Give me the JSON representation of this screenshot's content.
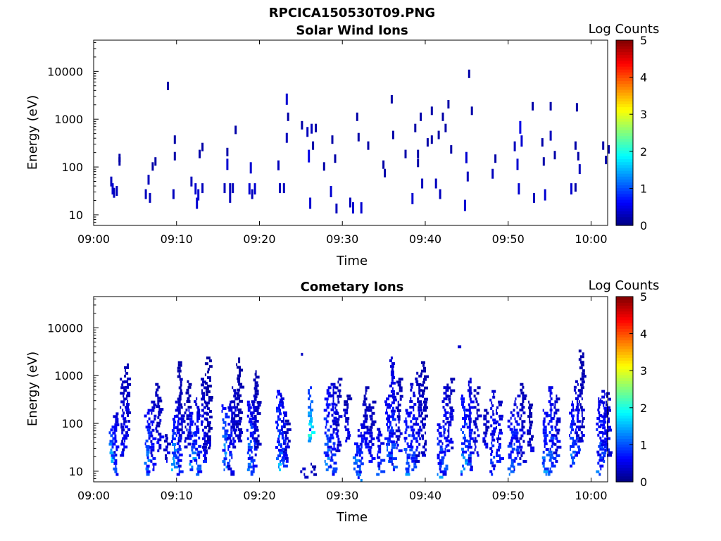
{
  "figure_title": "RPCICA150530T09.PNG",
  "colorbar": {
    "label": "Log Counts",
    "ticks": [
      "0",
      "1",
      "2",
      "3",
      "4",
      "5"
    ],
    "range": [
      0,
      5
    ],
    "colormap": "jet"
  },
  "chart_data": [
    {
      "type": "heatmap",
      "title": "Solar Wind Ions",
      "xlabel": "Time",
      "ylabel": "Energy (eV)",
      "x_ticks": [
        "09:00",
        "09:10",
        "09:20",
        "09:30",
        "09:40",
        "09:50",
        "10:00"
      ],
      "y_ticks": [
        "10",
        "100",
        "1000",
        "10000"
      ],
      "y_scale": "log",
      "xlim": [
        "09:00",
        "10:02"
      ],
      "ylim": [
        6,
        45000
      ],
      "points": [
        [
          "09:02:00",
          55,
          0.3
        ],
        [
          "09:02:10",
          40,
          0.4
        ],
        [
          "09:02:20",
          32,
          0.3
        ],
        [
          "09:02:40",
          35,
          0.3
        ],
        [
          "09:03:00",
          165,
          0.2
        ],
        [
          "09:03:00",
          140,
          0.2
        ],
        [
          "09:06:10",
          30,
          0.3
        ],
        [
          "09:06:30",
          60,
          0.3
        ],
        [
          "09:06:40",
          25,
          0.3
        ],
        [
          "09:07:00",
          110,
          0.2
        ],
        [
          "09:07:20",
          140,
          0.2
        ],
        [
          "09:08:50",
          5300,
          0.2
        ],
        [
          "09:09:30",
          30,
          0.3
        ],
        [
          "09:09:40",
          400,
          0.2
        ],
        [
          "09:09:40",
          180,
          0.2
        ],
        [
          "09:11:40",
          55,
          0.3
        ],
        [
          "09:12:10",
          40,
          0.4
        ],
        [
          "09:12:20",
          20,
          0.4
        ],
        [
          "09:12:30",
          30,
          0.4
        ],
        [
          "09:12:40",
          200,
          0.2
        ],
        [
          "09:13:00",
          280,
          0.2
        ],
        [
          "09:13:00",
          40,
          0.3
        ],
        [
          "09:15:40",
          40,
          0.3
        ],
        [
          "09:16:00",
          130,
          0.4
        ],
        [
          "09:16:00",
          220,
          0.2
        ],
        [
          "09:16:20",
          40,
          0.3
        ],
        [
          "09:16:20",
          25,
          0.3
        ],
        [
          "09:16:40",
          40,
          0.3
        ],
        [
          "09:17:00",
          640,
          0.2
        ],
        [
          "09:18:40",
          40,
          0.4
        ],
        [
          "09:18:50",
          110,
          0.4
        ],
        [
          "09:19:00",
          30,
          0.3
        ],
        [
          "09:19:20",
          40,
          0.4
        ],
        [
          "09:22:10",
          120,
          0.3
        ],
        [
          "09:22:20",
          40,
          0.3
        ],
        [
          "09:22:50",
          40,
          0.3
        ],
        [
          "09:23:10",
          3000,
          0.4
        ],
        [
          "09:23:10",
          450,
          0.3
        ],
        [
          "09:23:20",
          1200,
          0.2
        ],
        [
          "09:25:00",
          800,
          0.2
        ],
        [
          "09:25:40",
          600,
          0.3
        ],
        [
          "09:25:50",
          200,
          0.5
        ],
        [
          "09:26:00",
          20,
          0.4
        ],
        [
          "09:26:10",
          700,
          0.3
        ],
        [
          "09:26:20",
          300,
          0.2
        ],
        [
          "09:26:40",
          700,
          0.2
        ],
        [
          "09:27:40",
          110,
          0.2
        ],
        [
          "09:28:30",
          35,
          0.4
        ],
        [
          "09:28:40",
          400,
          0.2
        ],
        [
          "09:29:00",
          160,
          0.2
        ],
        [
          "09:29:10",
          15,
          0.3
        ],
        [
          "09:30:50",
          20,
          0.3
        ],
        [
          "09:31:10",
          16,
          0.4
        ],
        [
          "09:31:40",
          1200,
          0.2
        ],
        [
          "09:31:50",
          450,
          0.2
        ],
        [
          "09:32:10",
          16,
          0.4
        ],
        [
          "09:33:00",
          300,
          0.2
        ],
        [
          "09:34:50",
          120,
          0.2
        ],
        [
          "09:35:00",
          80,
          0.2
        ],
        [
          "09:35:50",
          2800,
          0.2
        ],
        [
          "09:36:00",
          500,
          0.2
        ],
        [
          "09:37:30",
          200,
          0.2
        ],
        [
          "09:38:20",
          25,
          0.4
        ],
        [
          "09:38:40",
          700,
          0.2
        ],
        [
          "09:39:00",
          200,
          0.2
        ],
        [
          "09:39:00",
          130,
          0.2
        ],
        [
          "09:39:20",
          1200,
          0.2
        ],
        [
          "09:39:30",
          50,
          0.3
        ],
        [
          "09:40:10",
          350,
          0.2
        ],
        [
          "09:40:40",
          1600,
          0.2
        ],
        [
          "09:40:40",
          400,
          0.2
        ],
        [
          "09:41:10",
          50,
          0.3
        ],
        [
          "09:41:30",
          500,
          0.2
        ],
        [
          "09:41:40",
          30,
          0.3
        ],
        [
          "09:42:00",
          1200,
          0.2
        ],
        [
          "09:42:20",
          700,
          0.2
        ],
        [
          "09:42:40",
          2200,
          0.2
        ],
        [
          "09:43:00",
          250,
          0.2
        ],
        [
          "09:44:40",
          18,
          0.4
        ],
        [
          "09:44:50",
          180,
          0.4
        ],
        [
          "09:45:00",
          70,
          0.3
        ],
        [
          "09:45:10",
          9500,
          0.2
        ],
        [
          "09:45:30",
          1600,
          0.2
        ],
        [
          "09:48:00",
          80,
          0.3
        ],
        [
          "09:48:20",
          160,
          0.2
        ],
        [
          "09:50:40",
          300,
          0.3
        ],
        [
          "09:51:00",
          130,
          0.4
        ],
        [
          "09:51:10",
          40,
          0.4
        ],
        [
          "09:51:20",
          800,
          0.5
        ],
        [
          "09:51:30",
          400,
          0.4
        ],
        [
          "09:52:50",
          2000,
          0.2
        ],
        [
          "09:53:00",
          25,
          0.3
        ],
        [
          "09:54:00",
          350,
          0.2
        ],
        [
          "09:54:10",
          140,
          0.2
        ],
        [
          "09:54:20",
          30,
          0.4
        ],
        [
          "09:55:00",
          2000,
          0.2
        ],
        [
          "09:55:00",
          500,
          0.3
        ],
        [
          "09:55:30",
          190,
          0.2
        ],
        [
          "09:57:30",
          40,
          0.4
        ],
        [
          "09:58:00",
          40,
          0.2
        ],
        [
          "09:58:00",
          300,
          0.2
        ],
        [
          "09:58:10",
          1900,
          0.2
        ],
        [
          "09:58:20",
          180,
          0.2
        ],
        [
          "09:58:30",
          100,
          0.3
        ],
        [
          "10:01:20",
          300,
          0.2
        ],
        [
          "10:01:40",
          150,
          0.2
        ],
        [
          "10:02:00",
          250,
          0.2
        ]
      ]
    },
    {
      "type": "heatmap",
      "title": "Cometary Ions",
      "xlabel": "Time",
      "ylabel": "Energy (eV)",
      "x_ticks": [
        "09:00",
        "09:10",
        "09:20",
        "09:30",
        "09:40",
        "09:50",
        "10:00"
      ],
      "y_ticks": [
        "10",
        "100",
        "1000",
        "10000"
      ],
      "y_scale": "log",
      "xlim": [
        "09:00",
        "10:02"
      ],
      "ylim": [
        6,
        45000
      ],
      "bursts": [
        [
          "09:02:00",
          15,
          90,
          1.6
        ],
        [
          "09:02:30",
          8,
          170,
          1.0
        ],
        [
          "09:03:20",
          20,
          900,
          0.7
        ],
        [
          "09:03:50",
          40,
          1800,
          0.6
        ],
        [
          "09:06:20",
          8,
          200,
          1.3
        ],
        [
          "09:07:00",
          10,
          300,
          0.9
        ],
        [
          "09:07:40",
          25,
          700,
          0.6
        ],
        [
          "09:08:40",
          15,
          60,
          0.6
        ],
        [
          "09:09:30",
          10,
          150,
          1.5
        ],
        [
          "09:10:00",
          8,
          300,
          1.0
        ],
        [
          "09:10:20",
          40,
          2000,
          0.5
        ],
        [
          "09:11:10",
          30,
          800,
          0.5
        ],
        [
          "09:11:40",
          10,
          200,
          1.4
        ],
        [
          "09:12:20",
          8,
          350,
          1.0
        ],
        [
          "09:13:10",
          15,
          900,
          0.7
        ],
        [
          "09:13:40",
          25,
          2500,
          0.4
        ],
        [
          "09:15:40",
          10,
          250,
          1.6
        ],
        [
          "09:16:20",
          8,
          300,
          1.0
        ],
        [
          "09:16:50",
          30,
          600,
          0.7
        ],
        [
          "09:17:20",
          40,
          2400,
          0.4
        ],
        [
          "09:18:40",
          10,
          300,
          1.4
        ],
        [
          "09:19:10",
          8,
          400,
          0.9
        ],
        [
          "09:19:30",
          30,
          1300,
          0.5
        ],
        [
          "09:22:10",
          10,
          500,
          1.5
        ],
        [
          "09:22:40",
          12,
          400,
          1.0
        ],
        [
          "09:23:10",
          15,
          120,
          0.6
        ],
        [
          "09:24:50",
          2800,
          2800,
          0.4
        ],
        [
          "09:25:10",
          7,
          12,
          0.7
        ],
        [
          "09:26:00",
          40,
          600,
          2.0
        ],
        [
          "09:26:20",
          8,
          15,
          0.5
        ],
        [
          "09:28:00",
          10,
          600,
          1.3
        ],
        [
          "09:28:40",
          8,
          700,
          1.0
        ],
        [
          "09:29:20",
          25,
          900,
          0.6
        ],
        [
          "09:30:20",
          40,
          400,
          0.6
        ],
        [
          "09:31:30",
          8,
          40,
          1.6
        ],
        [
          "09:32:00",
          6,
          100,
          1.1
        ],
        [
          "09:32:40",
          30,
          600,
          0.6
        ],
        [
          "09:33:20",
          15,
          300,
          0.6
        ],
        [
          "09:34:20",
          8,
          80,
          1.0
        ],
        [
          "09:35:20",
          15,
          400,
          1.2
        ],
        [
          "09:35:50",
          10,
          2500,
          1.0
        ],
        [
          "09:36:40",
          25,
          900,
          0.6
        ],
        [
          "09:37:40",
          8,
          200,
          1.3
        ],
        [
          "09:38:20",
          10,
          700,
          1.0
        ],
        [
          "09:39:00",
          15,
          1200,
          0.7
        ],
        [
          "09:39:40",
          20,
          2000,
          0.5
        ],
        [
          "09:41:30",
          7,
          100,
          1.3
        ],
        [
          "09:42:10",
          8,
          600,
          1.0
        ],
        [
          "09:42:50",
          25,
          900,
          0.6
        ],
        [
          "09:43:50",
          4000,
          4000,
          0.4
        ],
        [
          "09:44:30",
          8,
          400,
          1.5
        ],
        [
          "09:45:10",
          10,
          900,
          1.0
        ],
        [
          "09:46:00",
          20,
          600,
          0.6
        ],
        [
          "09:47:10",
          30,
          200,
          0.6
        ],
        [
          "09:48:00",
          8,
          500,
          1.0
        ],
        [
          "09:48:40",
          15,
          300,
          0.8
        ],
        [
          "09:50:10",
          8,
          180,
          1.2
        ],
        [
          "09:50:50",
          10,
          400,
          1.0
        ],
        [
          "09:51:30",
          15,
          700,
          0.6
        ],
        [
          "09:52:30",
          25,
          300,
          0.5
        ],
        [
          "09:54:20",
          8,
          200,
          1.3
        ],
        [
          "09:55:00",
          8,
          600,
          1.2
        ],
        [
          "09:55:40",
          15,
          400,
          0.8
        ],
        [
          "09:57:30",
          12,
          300,
          1.3
        ],
        [
          "09:58:10",
          20,
          800,
          0.8
        ],
        [
          "09:58:40",
          40,
          3500,
          0.5
        ],
        [
          "10:00:50",
          8,
          350,
          1.2
        ],
        [
          "10:01:20",
          15,
          500,
          1.0
        ],
        [
          "10:01:50",
          20,
          450,
          0.8
        ]
      ]
    }
  ]
}
